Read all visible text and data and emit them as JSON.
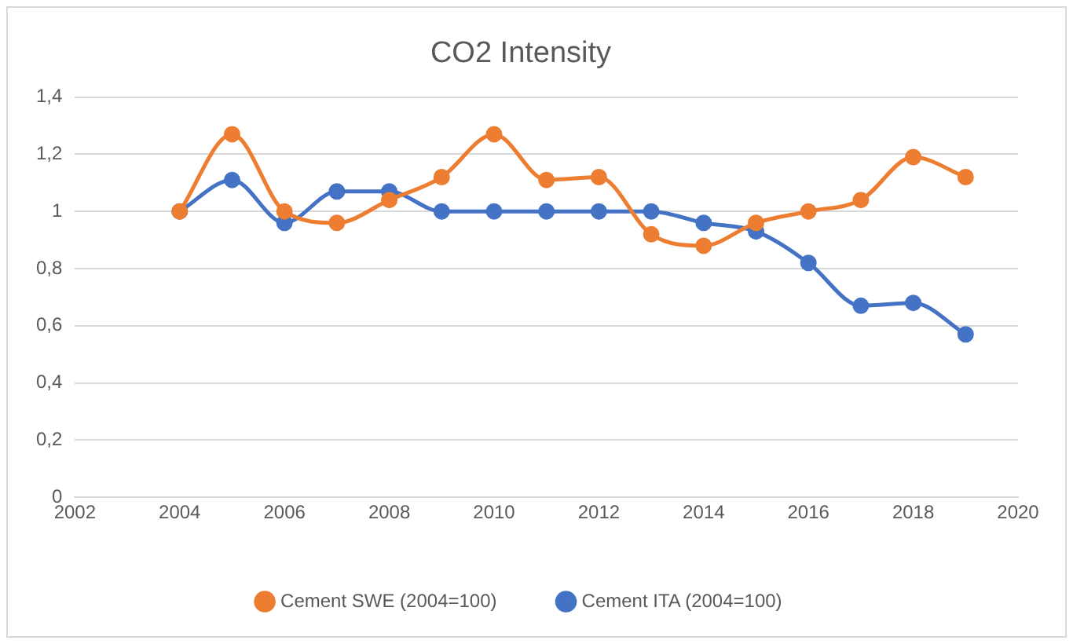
{
  "chart_data": {
    "type": "line",
    "title": "CO2 Intensity",
    "x": [
      2004,
      2005,
      2006,
      2007,
      2008,
      2009,
      2010,
      2011,
      2012,
      2013,
      2014,
      2015,
      2016,
      2017,
      2018,
      2019
    ],
    "series": [
      {
        "name": "Cement ITA (2004=100)",
        "color": "#4472c4",
        "values": [
          1.0,
          1.11,
          0.96,
          1.07,
          1.07,
          1.0,
          1.0,
          1.0,
          1.0,
          1.0,
          0.96,
          0.93,
          0.82,
          0.67,
          0.68,
          0.57
        ]
      },
      {
        "name": "Cement SWE (2004=100)",
        "color": "#ed7d31",
        "values": [
          1.0,
          1.27,
          1.0,
          0.96,
          1.04,
          1.12,
          1.27,
          1.11,
          1.12,
          0.92,
          0.88,
          0.96,
          1.0,
          1.04,
          1.19,
          1.12
        ]
      }
    ],
    "xlim": [
      2002,
      2020
    ],
    "xticks": [
      2002,
      2004,
      2006,
      2008,
      2010,
      2012,
      2014,
      2016,
      2018,
      2020
    ],
    "ylim": [
      0,
      1.4
    ],
    "yticks": [
      0,
      {
        "value": 0.2,
        "label": "0,2"
      },
      {
        "value": 0.4,
        "label": "0,4"
      },
      {
        "value": 0.6,
        "label": "0,6"
      },
      {
        "value": 0.8,
        "label": "0,8"
      },
      1,
      {
        "value": 1.2,
        "label": "1,2"
      },
      {
        "value": 1.4,
        "label": "1,4"
      }
    ],
    "grid": "y",
    "legend": "bottom",
    "marker": "circle",
    "line_style": "solid"
  }
}
